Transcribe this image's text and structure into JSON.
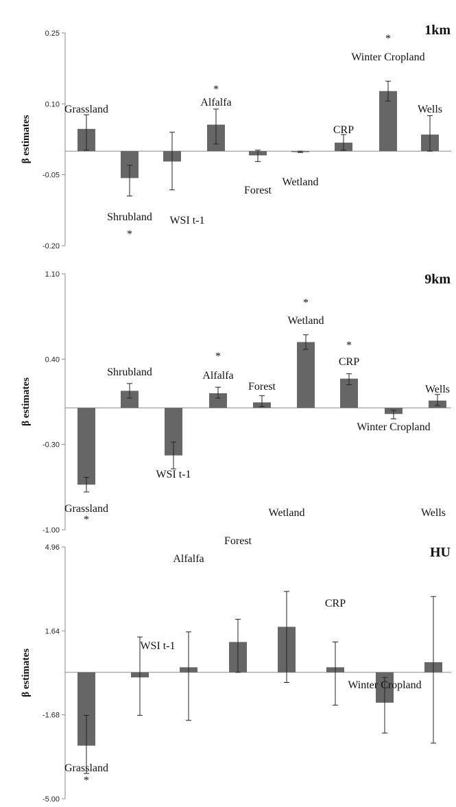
{
  "chart_data": [
    {
      "type": "bar",
      "title": "1km",
      "ylabel": "β estimates",
      "ylim": [
        -0.2,
        0.25
      ],
      "yticks": [
        "0.25",
        "0.10",
        "-0.05",
        "-0.20"
      ],
      "yticks_values": [
        0.25,
        0.1,
        -0.05,
        -0.2
      ],
      "bar_color": "#666666",
      "categories": [
        "Grassland",
        "Shrubland",
        "WSI t-1",
        "Alfalfa",
        "Forest",
        "Wetland",
        "CRP",
        "Winter Cropland",
        "Wells"
      ],
      "values": [
        0.047,
        -0.057,
        -0.022,
        0.056,
        -0.009,
        -0.002,
        0.018,
        0.127,
        0.035
      ],
      "err_low": [
        0.002,
        -0.095,
        -0.082,
        0.015,
        -0.022,
        -0.003,
        0.002,
        0.106,
        0.0
      ],
      "err_high": [
        0.077,
        -0.03,
        0.04,
        0.089,
        0.002,
        0.0,
        0.035,
        0.148,
        0.075
      ],
      "significant": [
        false,
        true,
        false,
        true,
        false,
        false,
        false,
        true,
        false
      ],
      "star_symbol": "*"
    },
    {
      "type": "bar",
      "title": "9km",
      "ylabel": "β estimates",
      "ylim": [
        -1.0,
        1.1
      ],
      "yticks": [
        "1.10",
        "0.40",
        "-0.30",
        "-1.00"
      ],
      "yticks_values": [
        1.1,
        0.4,
        -0.3,
        -1.0
      ],
      "bar_color": "#666666",
      "categories": [
        "Grassland",
        "Shrubland",
        "WSI t-1",
        "Alfalfa",
        "Forest",
        "Wetland",
        "CRP",
        "Winter Cropland",
        "Wells"
      ],
      "values": [
        -0.63,
        0.14,
        -0.39,
        0.12,
        0.045,
        0.54,
        0.24,
        -0.05,
        0.06
      ],
      "err_low": [
        -0.69,
        0.08,
        -0.5,
        0.08,
        0.01,
        0.48,
        0.19,
        -0.09,
        0.02
      ],
      "err_high": [
        -0.57,
        0.2,
        -0.28,
        0.17,
        0.1,
        0.6,
        0.28,
        -0.02,
        0.11
      ],
      "significant": [
        true,
        false,
        false,
        true,
        false,
        true,
        true,
        false,
        false
      ],
      "star_symbol": "*"
    },
    {
      "type": "bar",
      "title": "HU",
      "ylabel": "β estimates",
      "ylim": [
        -5.0,
        4.96
      ],
      "yticks": [
        "4.96",
        "1.64",
        "-1.68",
        "-5.00"
      ],
      "yticks_values": [
        4.96,
        1.64,
        -1.68,
        -5.0
      ],
      "bar_color": "#666666",
      "categories": [
        "Grassland",
        "WSI t-1",
        "Alfalfa",
        "Forest",
        "Wetland",
        "CRP",
        "Winter Cropland",
        "Wells"
      ],
      "values": [
        -2.9,
        -0.2,
        0.2,
        1.2,
        1.8,
        0.2,
        -1.2,
        0.4
      ],
      "err_low": [
        -4.0,
        -1.7,
        -1.9,
        0.0,
        -0.4,
        -1.3,
        -2.4,
        -2.8
      ],
      "err_high": [
        -1.7,
        1.4,
        1.6,
        2.1,
        3.2,
        1.2,
        -0.2,
        3.0
      ],
      "significant": [
        true,
        false,
        false,
        false,
        false,
        false,
        false,
        false
      ],
      "star_symbol": "*"
    }
  ]
}
